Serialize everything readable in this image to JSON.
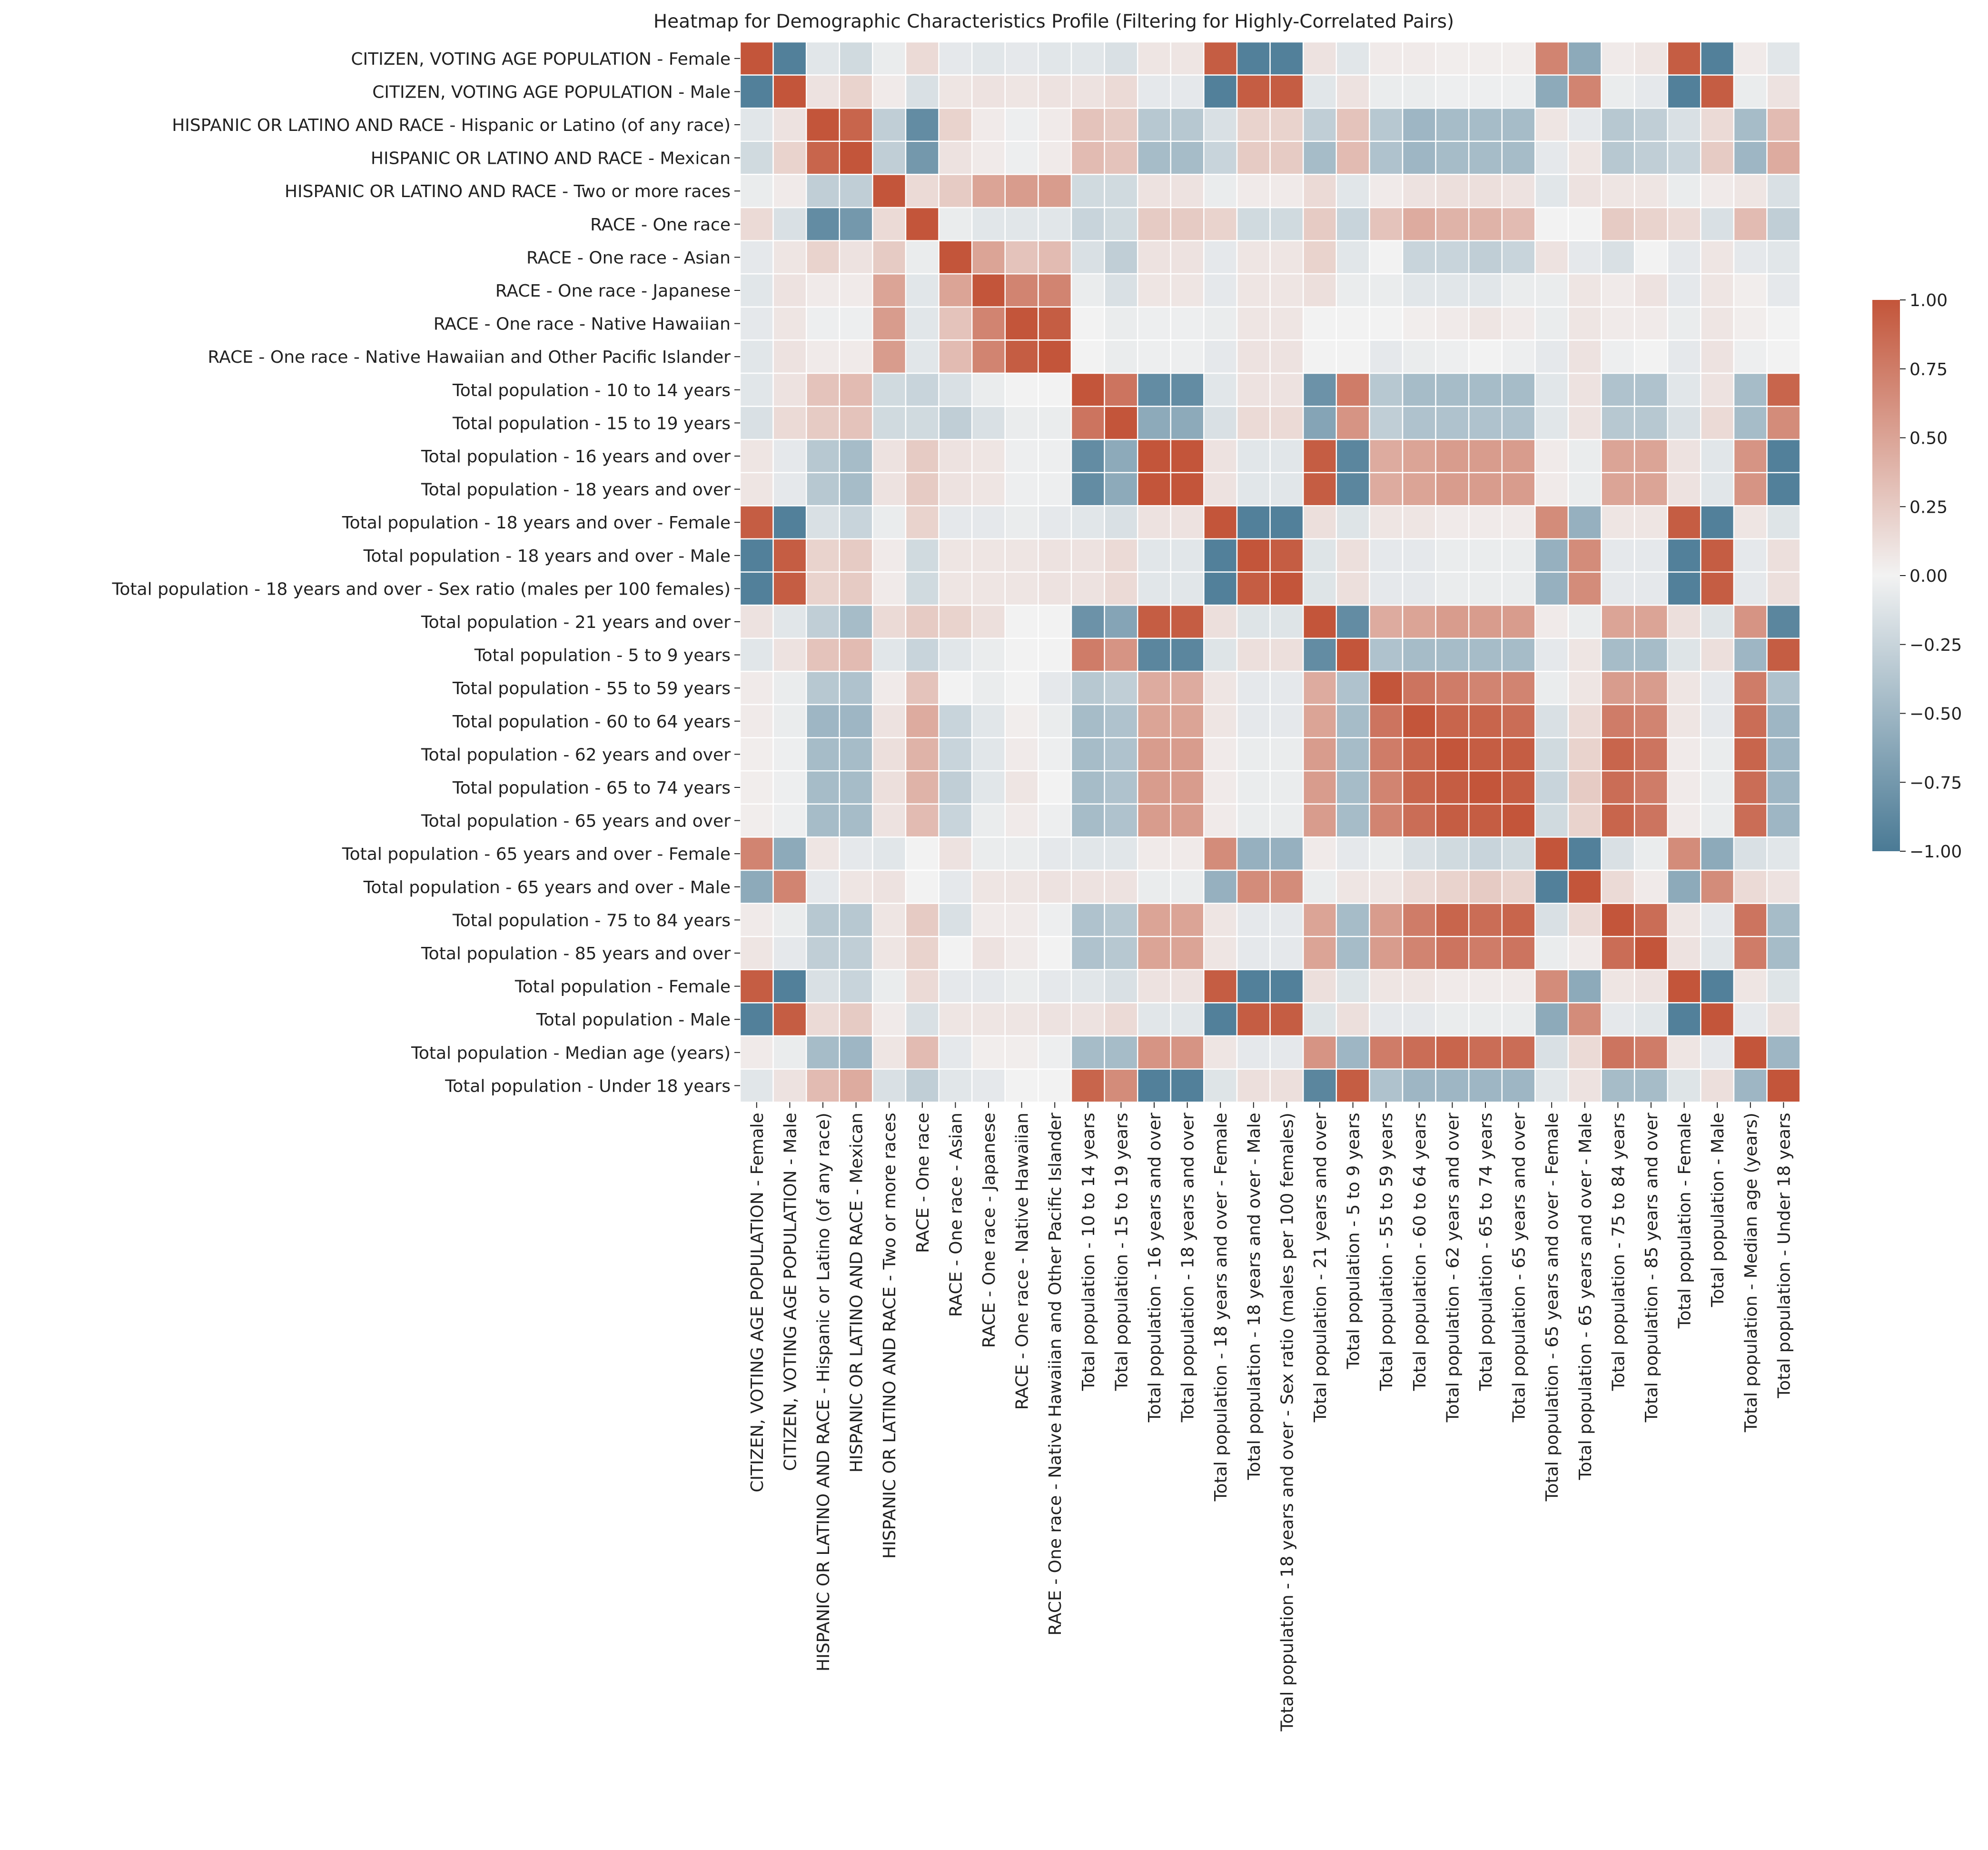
{
  "chart_data": {
    "type": "heatmap",
    "title": "Heatmap for Demographic Characteristics Profile (Filtering for Highly-Correlated Pairs)",
    "xlabel": "",
    "ylabel": "",
    "labels": [
      "CITIZEN, VOTING AGE POPULATION - Female",
      "CITIZEN, VOTING AGE POPULATION - Male",
      "HISPANIC OR LATINO AND RACE - Hispanic or Latino (of any race)",
      "HISPANIC OR LATINO AND RACE - Mexican",
      "HISPANIC OR LATINO AND RACE - Two or more races",
      "RACE - One race",
      "RACE - One race - Asian",
      "RACE - One race - Japanese",
      "RACE - One race - Native Hawaiian",
      "RACE - One race - Native Hawaiian and Other Pacific Islander",
      "Total population - 10 to 14 years",
      "Total population - 15 to 19 years",
      "Total population - 16 years and over",
      "Total population - 18 years and over",
      "Total population - 18 years and over - Female",
      "Total population - 18 years and over - Male",
      "Total population - 18 years and over - Sex ratio (males per 100 females)",
      "Total population - 21 years and over",
      "Total population - 5 to 9 years",
      "Total population - 55 to 59 years",
      "Total population - 60 to 64 years",
      "Total population - 62 years and over",
      "Total population - 65 to 74 years",
      "Total population - 65 years and over",
      "Total population - 65 years and over - Female",
      "Total population - 65 years and over - Male",
      "Total population - 75 to 84 years",
      "Total population - 85 years and over",
      "Total population - Female",
      "Total population - Male",
      "Total population - Median age (years)",
      "Total population - Under 18 years"
    ],
    "values": [
      [
        1.0,
        -0.95,
        -0.1,
        -0.2,
        -0.05,
        0.15,
        -0.08,
        -0.1,
        -0.08,
        -0.1,
        -0.1,
        -0.15,
        0.08,
        0.08,
        0.95,
        -0.95,
        -0.95,
        0.1,
        -0.1,
        0.05,
        0.05,
        0.03,
        0.03,
        0.03,
        0.7,
        -0.6,
        0.05,
        0.08,
        0.95,
        -0.95,
        0.05,
        -0.1
      ],
      [
        -0.95,
        1.0,
        0.1,
        0.2,
        0.05,
        -0.15,
        0.08,
        0.1,
        0.08,
        0.1,
        0.1,
        0.15,
        -0.08,
        -0.08,
        -0.95,
        0.95,
        0.95,
        -0.1,
        0.1,
        -0.05,
        -0.05,
        -0.03,
        -0.03,
        -0.03,
        -0.6,
        0.7,
        -0.05,
        -0.08,
        -0.95,
        0.95,
        -0.05,
        0.1
      ],
      [
        -0.1,
        0.1,
        1.0,
        0.9,
        -0.3,
        -0.85,
        0.2,
        0.05,
        -0.03,
        0.05,
        0.3,
        0.25,
        -0.35,
        -0.35,
        -0.15,
        0.2,
        0.2,
        -0.3,
        0.3,
        -0.35,
        -0.5,
        -0.45,
        -0.45,
        -0.45,
        0.08,
        -0.08,
        -0.35,
        -0.3,
        -0.15,
        0.15,
        -0.45,
        0.35
      ],
      [
        -0.2,
        0.2,
        0.9,
        1.0,
        -0.3,
        -0.75,
        0.1,
        0.05,
        -0.03,
        0.05,
        0.35,
        0.3,
        -0.45,
        -0.45,
        -0.25,
        0.25,
        0.25,
        -0.45,
        0.35,
        -0.4,
        -0.5,
        -0.45,
        -0.45,
        -0.45,
        -0.08,
        0.08,
        -0.35,
        -0.3,
        -0.25,
        0.25,
        -0.5,
        0.45
      ],
      [
        -0.05,
        0.05,
        -0.3,
        -0.3,
        1.0,
        0.15,
        0.25,
        0.5,
        0.55,
        0.55,
        -0.2,
        -0.2,
        0.1,
        0.1,
        -0.05,
        0.05,
        0.05,
        0.15,
        -0.1,
        0.05,
        0.1,
        0.12,
        0.12,
        0.1,
        -0.1,
        0.1,
        0.08,
        0.08,
        -0.05,
        0.05,
        0.08,
        -0.15
      ],
      [
        0.15,
        -0.15,
        -0.85,
        -0.75,
        0.15,
        1.0,
        -0.05,
        -0.1,
        -0.1,
        -0.1,
        -0.25,
        -0.2,
        0.25,
        0.25,
        0.2,
        -0.2,
        -0.2,
        0.25,
        -0.25,
        0.3,
        0.45,
        0.4,
        0.4,
        0.35,
        0.0,
        0.0,
        0.25,
        0.2,
        0.15,
        -0.15,
        0.35,
        -0.3
      ],
      [
        -0.08,
        0.08,
        0.2,
        0.1,
        0.25,
        -0.05,
        1.0,
        0.5,
        0.3,
        0.35,
        -0.15,
        -0.3,
        0.1,
        0.1,
        -0.08,
        0.08,
        0.08,
        0.2,
        -0.1,
        0.0,
        -0.25,
        -0.25,
        -0.3,
        -0.25,
        0.1,
        -0.08,
        -0.15,
        0.0,
        -0.08,
        0.08,
        -0.08,
        -0.1
      ],
      [
        -0.1,
        0.1,
        0.05,
        0.05,
        0.5,
        -0.1,
        0.5,
        1.0,
        0.7,
        0.7,
        -0.05,
        -0.15,
        0.08,
        0.08,
        -0.08,
        0.08,
        0.08,
        0.12,
        -0.05,
        -0.05,
        -0.1,
        -0.1,
        -0.1,
        -0.05,
        -0.05,
        0.08,
        0.05,
        0.1,
        -0.08,
        0.08,
        0.03,
        -0.08
      ],
      [
        -0.08,
        0.08,
        -0.03,
        -0.03,
        0.55,
        -0.1,
        0.3,
        0.7,
        1.0,
        0.95,
        0.0,
        -0.05,
        -0.03,
        -0.03,
        -0.05,
        0.08,
        0.08,
        0.0,
        0.0,
        0.0,
        0.03,
        0.05,
        0.08,
        0.05,
        -0.05,
        0.08,
        0.05,
        0.05,
        -0.05,
        0.08,
        0.03,
        0.0
      ],
      [
        -0.1,
        0.1,
        0.05,
        0.05,
        0.55,
        -0.1,
        0.35,
        0.7,
        0.95,
        1.0,
        0.0,
        -0.05,
        -0.03,
        -0.03,
        -0.08,
        0.1,
        0.1,
        0.0,
        0.0,
        -0.08,
        -0.05,
        -0.03,
        0.0,
        -0.03,
        -0.08,
        0.1,
        -0.03,
        0.0,
        -0.08,
        0.1,
        -0.03,
        0.0
      ],
      [
        -0.1,
        0.1,
        0.3,
        0.35,
        -0.2,
        -0.25,
        -0.15,
        -0.05,
        0.0,
        0.0,
        1.0,
        0.8,
        -0.85,
        -0.85,
        -0.1,
        0.1,
        0.1,
        -0.8,
        0.75,
        -0.35,
        -0.45,
        -0.45,
        -0.45,
        -0.45,
        -0.1,
        0.1,
        -0.4,
        -0.4,
        -0.1,
        0.1,
        -0.45,
        0.9
      ],
      [
        -0.15,
        0.15,
        0.25,
        0.3,
        -0.2,
        -0.2,
        -0.3,
        -0.15,
        -0.05,
        -0.05,
        0.8,
        1.0,
        -0.6,
        -0.6,
        -0.15,
        0.15,
        0.15,
        -0.65,
        0.6,
        -0.3,
        -0.4,
        -0.4,
        -0.4,
        -0.4,
        -0.1,
        0.1,
        -0.35,
        -0.35,
        -0.15,
        0.15,
        -0.45,
        0.65
      ],
      [
        0.08,
        -0.08,
        -0.35,
        -0.45,
        0.1,
        0.25,
        0.1,
        0.08,
        -0.03,
        -0.03,
        -0.85,
        -0.6,
        1.0,
        1.0,
        0.1,
        -0.1,
        -0.1,
        0.95,
        -0.9,
        0.45,
        0.5,
        0.55,
        0.55,
        0.55,
        0.05,
        -0.05,
        0.5,
        0.5,
        0.1,
        -0.1,
        0.6,
        -0.95
      ],
      [
        0.08,
        -0.08,
        -0.35,
        -0.45,
        0.1,
        0.25,
        0.1,
        0.08,
        -0.03,
        -0.03,
        -0.85,
        -0.6,
        1.0,
        1.0,
        0.1,
        -0.1,
        -0.1,
        0.95,
        -0.9,
        0.45,
        0.5,
        0.55,
        0.55,
        0.55,
        0.05,
        -0.05,
        0.5,
        0.5,
        0.1,
        -0.1,
        0.6,
        -0.95
      ],
      [
        0.95,
        -0.95,
        -0.15,
        -0.25,
        -0.05,
        0.2,
        -0.08,
        -0.08,
        -0.05,
        -0.08,
        -0.1,
        -0.15,
        0.1,
        0.1,
        1.0,
        -0.95,
        -0.95,
        0.12,
        -0.12,
        0.08,
        0.08,
        0.05,
        0.05,
        0.05,
        0.65,
        -0.55,
        0.08,
        0.08,
        0.95,
        -0.95,
        0.08,
        -0.12
      ],
      [
        -0.95,
        0.95,
        0.2,
        0.25,
        0.05,
        -0.2,
        0.08,
        0.08,
        0.08,
        0.1,
        0.1,
        0.15,
        -0.1,
        -0.1,
        -0.95,
        1.0,
        0.95,
        -0.12,
        0.12,
        -0.08,
        -0.08,
        -0.05,
        -0.05,
        -0.05,
        -0.55,
        0.65,
        -0.08,
        -0.08,
        -0.95,
        0.95,
        -0.08,
        0.12
      ],
      [
        -0.95,
        0.95,
        0.2,
        0.25,
        0.05,
        -0.2,
        0.08,
        0.08,
        0.08,
        0.1,
        0.1,
        0.15,
        -0.1,
        -0.1,
        -0.95,
        0.95,
        1.0,
        -0.12,
        0.12,
        -0.08,
        -0.08,
        -0.05,
        -0.05,
        -0.05,
        -0.55,
        0.65,
        -0.08,
        -0.08,
        -0.95,
        0.95,
        -0.08,
        0.12
      ],
      [
        0.1,
        -0.1,
        -0.3,
        -0.45,
        0.15,
        0.25,
        0.2,
        0.12,
        0.0,
        0.0,
        -0.8,
        -0.65,
        0.95,
        0.95,
        0.12,
        -0.12,
        -0.12,
        1.0,
        -0.85,
        0.45,
        0.5,
        0.55,
        0.55,
        0.55,
        0.05,
        -0.05,
        0.5,
        0.5,
        0.12,
        -0.12,
        0.6,
        -0.9
      ],
      [
        -0.1,
        0.1,
        0.3,
        0.35,
        -0.1,
        -0.25,
        -0.1,
        -0.05,
        0.0,
        0.0,
        0.75,
        0.6,
        -0.9,
        -0.9,
        -0.12,
        0.12,
        0.12,
        -0.85,
        1.0,
        -0.4,
        -0.45,
        -0.45,
        -0.45,
        -0.45,
        -0.08,
        0.08,
        -0.45,
        -0.45,
        -0.12,
        0.12,
        -0.5,
        0.95
      ],
      [
        0.05,
        -0.05,
        -0.35,
        -0.4,
        0.05,
        0.3,
        0.0,
        -0.05,
        0.0,
        -0.08,
        -0.35,
        -0.3,
        0.45,
        0.45,
        0.08,
        -0.08,
        -0.08,
        0.45,
        -0.4,
        1.0,
        0.8,
        0.75,
        0.7,
        0.7,
        -0.05,
        0.08,
        0.55,
        0.55,
        0.08,
        -0.08,
        0.75,
        -0.4
      ],
      [
        0.05,
        -0.05,
        -0.5,
        -0.5,
        0.1,
        0.45,
        -0.25,
        -0.1,
        0.03,
        -0.05,
        -0.45,
        -0.4,
        0.5,
        0.5,
        0.08,
        -0.08,
        -0.08,
        0.5,
        -0.45,
        0.8,
        1.0,
        0.9,
        0.9,
        0.85,
        -0.15,
        0.15,
        0.75,
        0.7,
        0.08,
        -0.08,
        0.85,
        -0.5
      ],
      [
        0.03,
        -0.03,
        -0.45,
        -0.45,
        0.12,
        0.4,
        -0.25,
        -0.1,
        0.05,
        -0.03,
        -0.45,
        -0.4,
        0.55,
        0.55,
        0.05,
        -0.05,
        -0.05,
        0.55,
        -0.45,
        0.75,
        0.9,
        1.0,
        0.95,
        0.95,
        -0.2,
        0.2,
        0.9,
        0.8,
        0.05,
        -0.05,
        0.9,
        -0.5
      ],
      [
        0.03,
        -0.03,
        -0.45,
        -0.45,
        0.12,
        0.4,
        -0.3,
        -0.1,
        0.08,
        0.0,
        -0.45,
        -0.4,
        0.55,
        0.55,
        0.05,
        -0.05,
        -0.05,
        0.55,
        -0.45,
        0.7,
        0.9,
        0.95,
        1.0,
        0.95,
        -0.25,
        0.25,
        0.85,
        0.75,
        0.05,
        -0.05,
        0.85,
        -0.5
      ],
      [
        0.03,
        -0.03,
        -0.45,
        -0.45,
        0.1,
        0.35,
        -0.25,
        -0.05,
        0.05,
        -0.03,
        -0.45,
        -0.4,
        0.55,
        0.55,
        0.05,
        -0.05,
        -0.05,
        0.55,
        -0.45,
        0.7,
        0.85,
        0.95,
        0.95,
        1.0,
        -0.2,
        0.2,
        0.9,
        0.8,
        0.05,
        -0.05,
        0.85,
        -0.5
      ],
      [
        0.7,
        -0.6,
        0.08,
        -0.08,
        -0.1,
        0.0,
        0.1,
        -0.05,
        -0.05,
        -0.08,
        -0.1,
        -0.1,
        0.05,
        0.05,
        0.65,
        -0.55,
        -0.55,
        0.05,
        -0.08,
        -0.05,
        -0.15,
        -0.2,
        -0.25,
        -0.2,
        1.0,
        -0.95,
        -0.15,
        -0.05,
        0.65,
        -0.6,
        -0.15,
        -0.1
      ],
      [
        -0.6,
        0.7,
        -0.08,
        0.08,
        0.1,
        0.0,
        -0.08,
        0.08,
        0.08,
        0.1,
        0.1,
        0.1,
        -0.05,
        -0.05,
        -0.55,
        0.65,
        0.65,
        -0.05,
        0.08,
        0.08,
        0.15,
        0.2,
        0.25,
        0.2,
        -0.95,
        1.0,
        0.15,
        0.05,
        -0.6,
        0.65,
        0.15,
        0.1
      ],
      [
        0.05,
        -0.05,
        -0.35,
        -0.35,
        0.08,
        0.25,
        -0.15,
        0.05,
        0.05,
        -0.03,
        -0.4,
        -0.35,
        0.5,
        0.5,
        0.08,
        -0.08,
        -0.08,
        0.5,
        -0.45,
        0.55,
        0.75,
        0.9,
        0.85,
        0.9,
        -0.15,
        0.15,
        1.0,
        0.85,
        0.08,
        -0.08,
        0.8,
        -0.45
      ],
      [
        0.08,
        -0.08,
        -0.3,
        -0.3,
        0.08,
        0.2,
        0.0,
        0.1,
        0.05,
        0.0,
        -0.4,
        -0.35,
        0.5,
        0.5,
        0.08,
        -0.08,
        -0.08,
        0.5,
        -0.45,
        0.55,
        0.7,
        0.8,
        0.75,
        0.8,
        -0.05,
        0.05,
        0.85,
        1.0,
        0.1,
        -0.1,
        0.75,
        -0.45
      ],
      [
        0.95,
        -0.95,
        -0.15,
        -0.25,
        -0.05,
        0.15,
        -0.08,
        -0.08,
        -0.05,
        -0.08,
        -0.1,
        -0.15,
        0.1,
        0.1,
        0.95,
        -0.95,
        -0.95,
        0.12,
        -0.12,
        0.08,
        0.08,
        0.05,
        0.05,
        0.05,
        0.65,
        -0.6,
        0.08,
        0.1,
        1.0,
        -0.95,
        0.08,
        -0.12
      ],
      [
        -0.95,
        0.95,
        0.15,
        0.25,
        0.05,
        -0.15,
        0.08,
        0.08,
        0.08,
        0.1,
        0.1,
        0.15,
        -0.1,
        -0.1,
        -0.95,
        0.95,
        0.95,
        -0.12,
        0.12,
        -0.08,
        -0.08,
        -0.05,
        -0.05,
        -0.05,
        -0.6,
        0.65,
        -0.08,
        -0.1,
        -0.95,
        1.0,
        -0.08,
        0.12
      ],
      [
        0.05,
        -0.05,
        -0.45,
        -0.5,
        0.08,
        0.35,
        -0.08,
        0.03,
        0.03,
        -0.03,
        -0.45,
        -0.45,
        0.6,
        0.6,
        0.08,
        -0.08,
        -0.08,
        0.6,
        -0.5,
        0.75,
        0.85,
        0.9,
        0.85,
        0.85,
        -0.15,
        0.15,
        0.8,
        0.75,
        0.08,
        -0.08,
        1.0,
        -0.5
      ],
      [
        -0.1,
        0.1,
        0.35,
        0.45,
        -0.15,
        -0.3,
        -0.1,
        -0.08,
        0.0,
        0.0,
        0.9,
        0.65,
        -0.95,
        -0.95,
        -0.12,
        0.12,
        0.12,
        -0.9,
        0.95,
        -0.4,
        -0.5,
        -0.5,
        -0.5,
        -0.5,
        -0.1,
        0.1,
        -0.45,
        -0.45,
        -0.12,
        0.12,
        -0.5,
        1.0
      ]
    ],
    "vmin": -1.0,
    "vmax": 1.0,
    "colorbar_ticks": [
      "1.00",
      "0.75",
      "0.50",
      "0.25",
      "0.00",
      "−0.25",
      "−0.50",
      "−0.75",
      "−1.00"
    ],
    "colors": {
      "low": "#4a7a95",
      "mid": "#f2f2f2",
      "high": "#c3553a"
    },
    "grid": false,
    "legend": "right colorbar"
  }
}
